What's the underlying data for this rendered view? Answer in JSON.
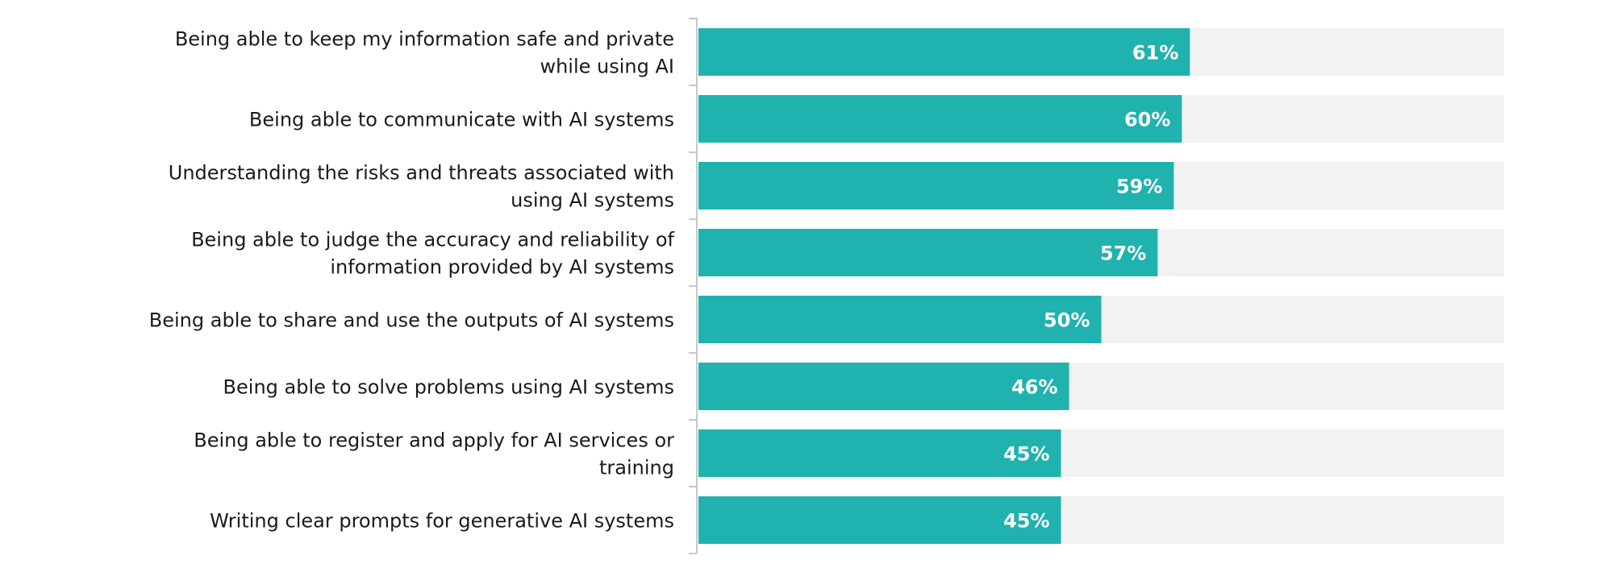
{
  "chart_data": {
    "type": "bar",
    "orientation": "horizontal",
    "categories": [
      [
        "Being able to keep my information safe and private",
        "while using AI"
      ],
      [
        "Being able to communicate with AI systems"
      ],
      [
        "Understanding the risks and threats associated with",
        "using AI systems"
      ],
      [
        "Being able to judge the accuracy and reliability of",
        "information provided by AI systems"
      ],
      [
        "Being able to share and use the outputs of AI systems"
      ],
      [
        "Being able to solve problems using AI systems"
      ],
      [
        "Being able to register and apply for AI services or",
        "training"
      ],
      [
        "Writing clear prompts for generative AI systems"
      ]
    ],
    "values": [
      61,
      60,
      59,
      57,
      50,
      46,
      45,
      45
    ],
    "value_labels": [
      "61%",
      "60%",
      "59%",
      "57%",
      "50%",
      "46%",
      "45%",
      "45%"
    ],
    "xlim": [
      0,
      100
    ],
    "title": "",
    "xlabel": "",
    "ylabel": "",
    "grid": false,
    "legend": "none",
    "colors": {
      "bar": "#20b2ae",
      "track": "#f2f2f2",
      "axis": "#c8c8c8",
      "label": "#1a1a1a",
      "value_text": "#ffffff"
    }
  }
}
